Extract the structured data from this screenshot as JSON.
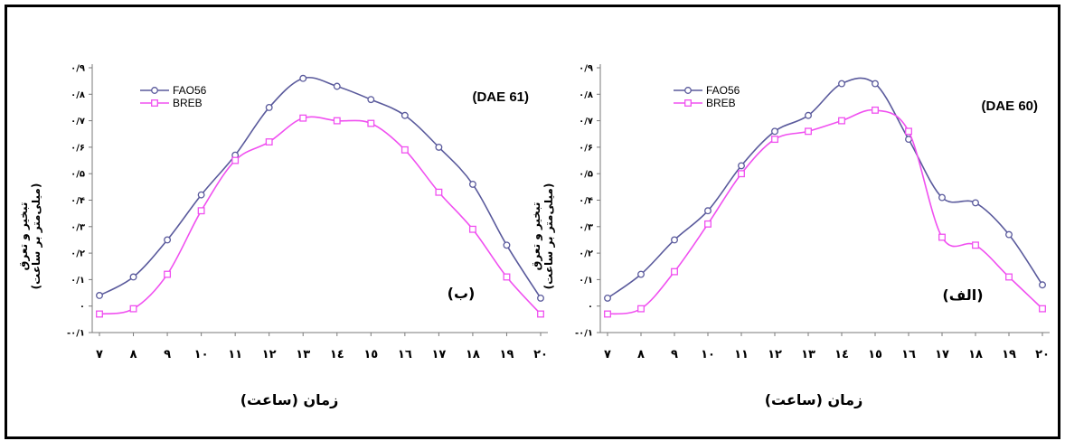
{
  "colors": {
    "fao": "#5a5a9c",
    "breb": "#f050f0",
    "axis": "#7a7a7a"
  },
  "y_ticks": [
    "-۰/۱",
    "۰",
    "۰/۱",
    "۰/۲",
    "۰/۳",
    "۰/۴",
    "۰/۵",
    "۰/۶",
    "۰/۷",
    "۰/۸",
    "۰/۹"
  ],
  "chart_data": [
    {
      "type": "line",
      "annotation": "(DAE 61)",
      "panel_label": "(ب)",
      "xlabel": "زمان (ساعت)",
      "ylabel_line1": "تبخیر و تعرق",
      "ylabel_line2": "(میلی‌متر بر ساعت)",
      "x": [
        7,
        8,
        9,
        10,
        11,
        12,
        13,
        14,
        15,
        16,
        17,
        18,
        19,
        20
      ],
      "x_tick_labels": [
        "۷",
        "۸",
        "۹",
        "۱۰",
        "۱۱",
        "۱۲",
        "۱۳",
        "۱٤",
        "۱٥",
        "۱٦",
        "۱۷",
        "۱۸",
        "۱۹",
        "۲۰"
      ],
      "ylim": [
        -0.1,
        0.9
      ],
      "legend_position": "top-left",
      "series": [
        {
          "name": "FAO56",
          "values": [
            0.04,
            0.11,
            0.25,
            0.42,
            0.57,
            0.75,
            0.86,
            0.83,
            0.78,
            0.72,
            0.6,
            0.46,
            0.23,
            0.03
          ]
        },
        {
          "name": "BREB",
          "values": [
            -0.03,
            -0.01,
            0.12,
            0.36,
            0.55,
            0.62,
            0.71,
            0.7,
            0.69,
            0.59,
            0.43,
            0.29,
            0.11,
            -0.03
          ]
        }
      ]
    },
    {
      "type": "line",
      "annotation": "(DAE 60)",
      "panel_label": "(الف)",
      "xlabel": "زمان (ساعت)",
      "ylabel_line1": "تبخیر و تعرق",
      "ylabel_line2": "(میلی‌متر بر ساعت)",
      "x": [
        7,
        8,
        9,
        10,
        11,
        12,
        13,
        14,
        14.7,
        15,
        16,
        17,
        18,
        19,
        20
      ],
      "x_tick_labels": [
        "۷",
        "۸",
        "۹",
        "۱۰",
        "۱۱",
        "۱۲",
        "۱۳",
        "۱٤",
        "۱٥",
        "۱٦",
        "۱۷",
        "۱۸",
        "۱۹",
        "۲۰"
      ],
      "ylim": [
        -0.1,
        0.9
      ],
      "legend_position": "top-left",
      "series": [
        {
          "name": "FAO56",
          "x": [
            7,
            8,
            9,
            10,
            11,
            12,
            13,
            14,
            15,
            16,
            17,
            18,
            19,
            20
          ],
          "values": [
            0.03,
            0.12,
            0.25,
            0.36,
            0.53,
            0.66,
            0.72,
            0.84,
            0.84,
            0.63,
            0.41,
            0.39,
            0.27,
            0.08
          ]
        },
        {
          "name": "BREB",
          "x": [
            7,
            8,
            9,
            10,
            11,
            12,
            13,
            14,
            15,
            16,
            17,
            18,
            19,
            20
          ],
          "values": [
            -0.03,
            -0.01,
            0.13,
            0.31,
            0.5,
            0.63,
            0.66,
            0.7,
            0.74,
            0.66,
            0.26,
            0.23,
            0.11,
            -0.01
          ]
        }
      ]
    }
  ]
}
